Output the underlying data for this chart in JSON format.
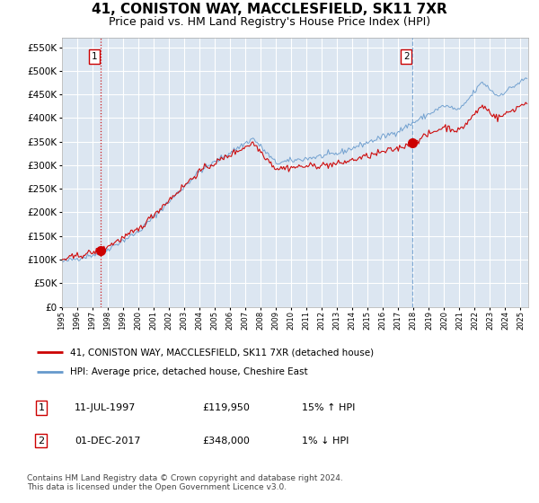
{
  "title": "41, CONISTON WAY, MACCLESFIELD, SK11 7XR",
  "subtitle": "Price paid vs. HM Land Registry's House Price Index (HPI)",
  "ylim": [
    0,
    570000
  ],
  "yticks": [
    0,
    50000,
    100000,
    150000,
    200000,
    250000,
    300000,
    350000,
    400000,
    450000,
    500000,
    550000
  ],
  "xlim_start": 1995.0,
  "xlim_end": 2025.5,
  "sale1_date": 1997.53,
  "sale1_price": 119950,
  "sale1_label": "1",
  "sale2_date": 2017.92,
  "sale2_price": 348000,
  "sale2_label": "2",
  "legend_line1": "41, CONISTON WAY, MACCLESFIELD, SK11 7XR (detached house)",
  "legend_line2": "HPI: Average price, detached house, Cheshire East",
  "table_row1": [
    "1",
    "11-JUL-1997",
    "£119,950",
    "15% ↑ HPI"
  ],
  "table_row2": [
    "2",
    "01-DEC-2017",
    "£348,000",
    "1% ↓ HPI"
  ],
  "footer": "Contains HM Land Registry data © Crown copyright and database right 2024.\nThis data is licensed under the Open Government Licence v3.0.",
  "plot_bg_color": "#dce6f1",
  "red_line_color": "#cc0000",
  "blue_line_color": "#6699cc",
  "grid_color": "#ffffff",
  "sale1_vline_color": "#cc0000",
  "sale2_vline_color": "#6699cc",
  "title_fontsize": 11,
  "subtitle_fontsize": 9
}
